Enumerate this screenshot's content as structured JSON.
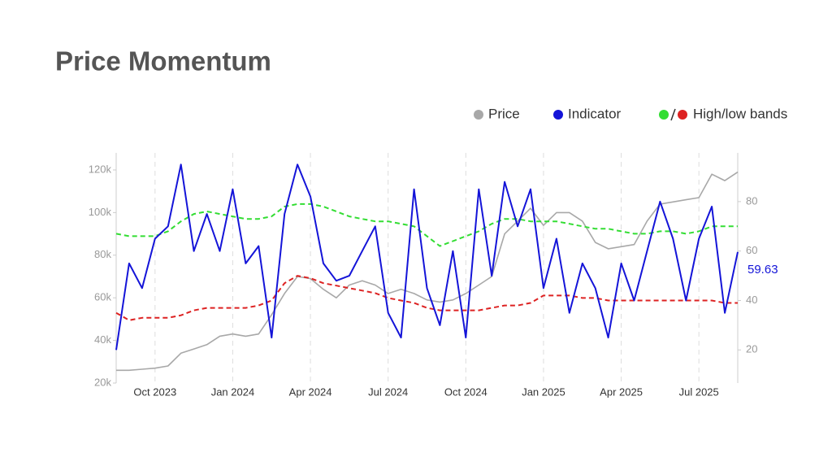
{
  "chart_data": {
    "type": "line",
    "title": "Price Momentum",
    "categories": [
      null,
      null,
      null,
      "Oct 2023",
      null,
      null,
      null,
      null,
      null,
      "Jan 2024",
      null,
      null,
      null,
      null,
      null,
      "Apr 2024",
      null,
      null,
      null,
      null,
      null,
      "Jul 2024",
      null,
      null,
      null,
      null,
      null,
      "Oct 2024",
      null,
      null,
      null,
      null,
      null,
      "Jan 2025",
      null,
      null,
      null,
      null,
      null,
      "Apr 2025",
      null,
      null,
      null,
      null,
      null,
      "Jul 2025",
      null,
      null,
      null
    ],
    "series": [
      {
        "name": "Price",
        "color": "#a8a8a8",
        "axis": "y",
        "values": [
          26000,
          26000,
          26500,
          27000,
          28000,
          34000,
          36000,
          38000,
          42000,
          43000,
          42000,
          43000,
          52000,
          62000,
          70000,
          69000,
          64000,
          60000,
          66000,
          68000,
          66000,
          62000,
          64000,
          62000,
          59000,
          58000,
          59000,
          62000,
          66000,
          70000,
          90000,
          96000,
          102000,
          94000,
          100000,
          100000,
          96000,
          86000,
          83000,
          84000,
          85000,
          96000,
          104000,
          105000,
          106000,
          107000,
          118000,
          115000,
          119000
        ]
      },
      {
        "name": "Indicator",
        "color": "#1414d8",
        "axis": "y2",
        "values": [
          20,
          55,
          45,
          65,
          70,
          95,
          60,
          75,
          60,
          85,
          55,
          62,
          25,
          75,
          95,
          82,
          55,
          48,
          50,
          60,
          70,
          35,
          25,
          85,
          45,
          30,
          60,
          25,
          85,
          50,
          88,
          70,
          85,
          45,
          65,
          35,
          55,
          45,
          25,
          55,
          40,
          60,
          80,
          65,
          40,
          65,
          78,
          35,
          59.63
        ]
      }
    ],
    "bands": {
      "name": "High/low bands",
      "axis": "y2",
      "high": {
        "color": "#33dd33",
        "values": [
          67,
          66,
          66,
          66,
          68,
          72,
          75,
          76,
          75,
          74,
          73,
          73,
          74,
          78,
          79,
          79,
          78,
          76,
          74,
          73,
          72,
          72,
          71,
          70,
          66,
          62,
          64,
          66,
          68,
          71,
          73,
          73,
          72,
          72,
          72,
          71,
          70,
          69,
          69,
          68,
          67,
          67,
          68,
          68,
          67,
          68,
          70,
          70,
          70
        ]
      },
      "low": {
        "color": "#dd2222",
        "values": [
          35,
          32,
          33,
          33,
          33,
          34,
          36,
          37,
          37,
          37,
          37,
          38,
          40,
          47,
          50,
          49,
          47,
          46,
          45,
          44,
          43,
          41,
          40,
          39,
          37,
          36,
          36,
          36,
          36,
          37,
          38,
          38,
          39,
          42,
          42,
          42,
          41,
          41,
          40,
          40,
          40,
          40,
          40,
          40,
          40,
          40,
          40,
          39,
          39
        ]
      }
    },
    "ylim": [
      20000,
      128000
    ],
    "yticks": [
      {
        "value": 20000,
        "label": "20k"
      },
      {
        "value": 40000,
        "label": "40k"
      },
      {
        "value": 60000,
        "label": "60k"
      },
      {
        "value": 80000,
        "label": "80k"
      },
      {
        "value": 100000,
        "label": "100k"
      },
      {
        "value": 120000,
        "label": "120k"
      }
    ],
    "y2lim": [
      6.6,
      99.7
    ],
    "y2ticks": [
      20,
      40,
      60,
      80
    ],
    "grid": "x"
  }
}
